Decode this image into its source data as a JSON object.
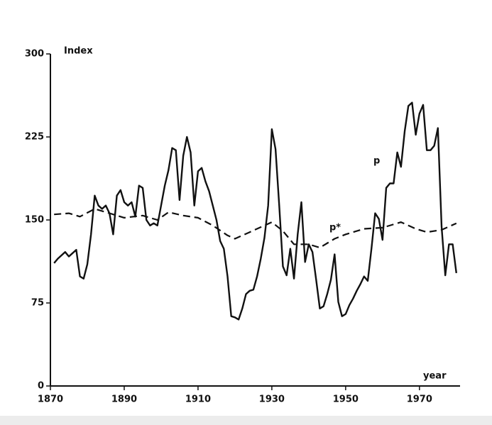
{
  "chart_data": {
    "type": "line",
    "y_label": "Index",
    "x_label": "year",
    "xlim": [
      1870,
      1981
    ],
    "xticks": [
      1870,
      1890,
      1910,
      1930,
      1950,
      1970
    ],
    "ylim": [
      0,
      300
    ],
    "yticks": [
      0,
      75,
      150,
      225,
      300
    ],
    "series": [
      {
        "name": "p",
        "color": "#111111",
        "dash": false,
        "x": [
          1871,
          1872,
          1873,
          1874,
          1875,
          1876,
          1877,
          1878,
          1879,
          1880,
          1881,
          1882,
          1883,
          1884,
          1885,
          1886,
          1887,
          1888,
          1889,
          1890,
          1891,
          1892,
          1893,
          1894,
          1895,
          1896,
          1897,
          1898,
          1899,
          1900,
          1901,
          1902,
          1903,
          1904,
          1905,
          1906,
          1907,
          1908,
          1909,
          1910,
          1911,
          1912,
          1913,
          1914,
          1915,
          1916,
          1917,
          1918,
          1919,
          1920,
          1921,
          1922,
          1923,
          1924,
          1925,
          1926,
          1927,
          1928,
          1929,
          1930,
          1931,
          1932,
          1933,
          1934,
          1935,
          1936,
          1937,
          1938,
          1939,
          1940,
          1941,
          1942,
          1943,
          1944,
          1945,
          1946,
          1947,
          1948,
          1949,
          1950,
          1951,
          1952,
          1953,
          1954,
          1955,
          1956,
          1957,
          1958,
          1959,
          1960,
          1961,
          1962,
          1963,
          1964,
          1965,
          1966,
          1967,
          1968,
          1969,
          1970,
          1971,
          1972,
          1973,
          1974,
          1975,
          1976,
          1977,
          1978,
          1979,
          1980
        ],
        "values": [
          111,
          115,
          118,
          121,
          117,
          120,
          123,
          99,
          97,
          110,
          137,
          172,
          163,
          160,
          163,
          156,
          137,
          172,
          177,
          166,
          163,
          166,
          153,
          181,
          179,
          150,
          145,
          147,
          145,
          163,
          181,
          195,
          215,
          213,
          168,
          208,
          225,
          211,
          163,
          194,
          197,
          185,
          176,
          163,
          150,
          131,
          124,
          99,
          63,
          62,
          60,
          70,
          83,
          86,
          87,
          99,
          115,
          134,
          163,
          232,
          214,
          163,
          108,
          100,
          124,
          97,
          137,
          166,
          112,
          128,
          121,
          96,
          70,
          72,
          83,
          96,
          119,
          76,
          63,
          65,
          73,
          79,
          86,
          92,
          99,
          95,
          124,
          156,
          151,
          132,
          179,
          183,
          183,
          211,
          198,
          230,
          253,
          256,
          227,
          246,
          254,
          213,
          213,
          217,
          233,
          144,
          100,
          128,
          128,
          102
        ]
      },
      {
        "name": "p*",
        "color": "#111111",
        "dash": true,
        "x": [
          1871,
          1875,
          1878,
          1882,
          1886,
          1890,
          1895,
          1899,
          1902,
          1906,
          1910,
          1914,
          1918,
          1920,
          1924,
          1928,
          1930,
          1933,
          1936,
          1940,
          1943,
          1947,
          1950,
          1955,
          1960,
          1965,
          1969,
          1972,
          1976,
          1980
        ],
        "values": [
          155,
          156,
          153,
          160,
          156,
          152,
          154,
          150,
          157,
          154,
          152,
          145,
          136,
          133,
          139,
          145,
          148,
          140,
          128,
          128,
          125,
          133,
          137,
          142,
          143,
          148,
          142,
          139,
          141,
          147
        ]
      }
    ]
  }
}
